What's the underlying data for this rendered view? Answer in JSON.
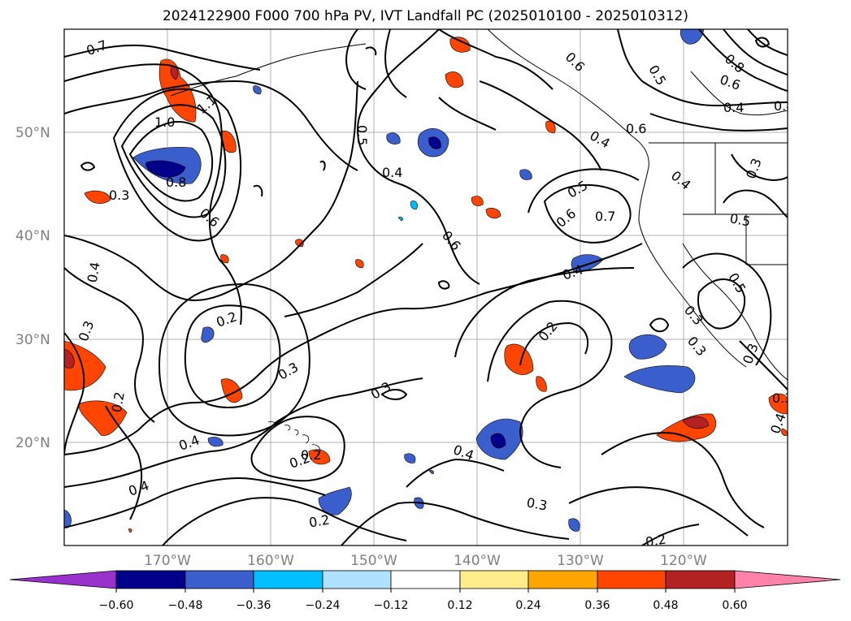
{
  "title": "2024122900 F000 700 hPa PV, IVT Landfall PC (2025010100 - 2025010312)",
  "map": {
    "lat_labels": [
      "50°N",
      "40°N",
      "30°N",
      "20°N"
    ],
    "lon_labels": [
      "170°W",
      "160°W",
      "150°W",
      "140°W",
      "130°W",
      "120°W"
    ],
    "contour_labels": [
      "0.7",
      "1.0",
      "1.1",
      "0.8",
      "0.3",
      "0.6",
      "0.5",
      "0.4",
      "0.6",
      "0.6",
      "0.4",
      "0.5",
      "0.8",
      "0.6",
      "0.4",
      "0.3",
      "0.5",
      "0.6",
      "0.7",
      "0.4",
      "0.3",
      "0.5",
      "0.4",
      "0.6",
      "0.4",
      "0.2",
      "0.3",
      "0.2",
      "0.3",
      "0.3",
      "0.2",
      "0.4",
      "0.2",
      "0.3",
      "0.5",
      "0.4",
      "0.4",
      "0.3",
      "0.2",
      "0.2",
      "0.4",
      "0.2",
      "0.3",
      "0.3",
      "0.4"
    ]
  },
  "colorbar": {
    "tick_labels": [
      "−0.60",
      "−0.48",
      "−0.36",
      "−0.24",
      "−0.12",
      "0.12",
      "0.24",
      "0.36",
      "0.48",
      "0.60"
    ],
    "colors": [
      "#9932cc",
      "#00008b",
      "#3a5fcd",
      "#00bfff",
      "#b0e2ff",
      "#ffffff",
      "#ffec8b",
      "#ffa500",
      "#ff4500",
      "#b22222",
      "#ff82ab"
    ]
  }
}
